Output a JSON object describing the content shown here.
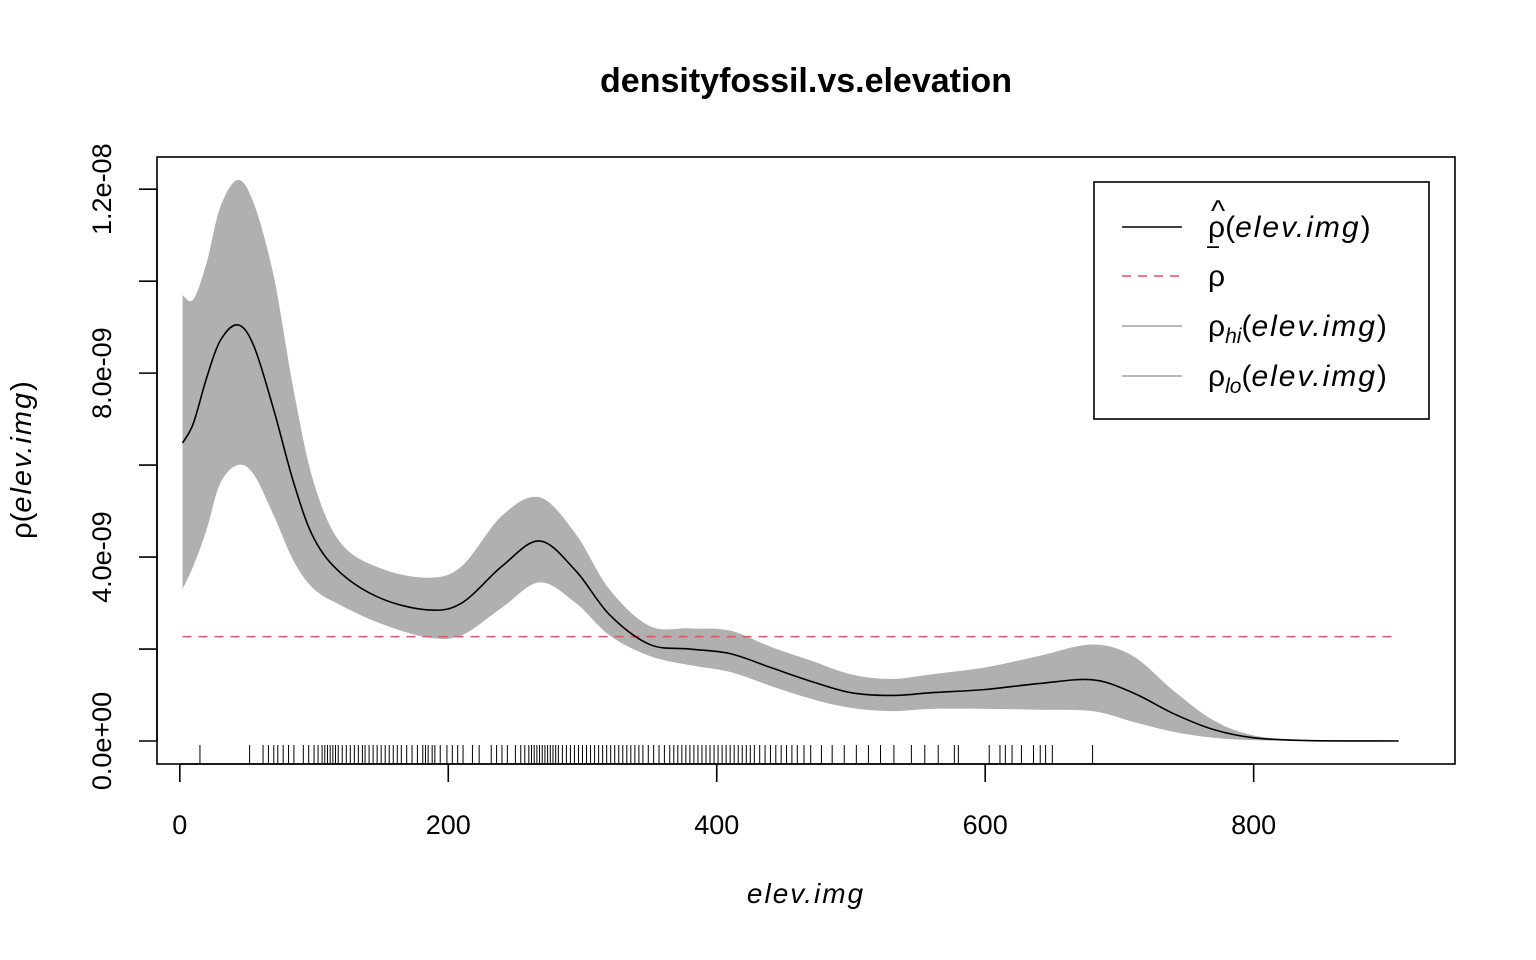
{
  "chart_data": {
    "type": "area",
    "title": "densityfossil.vs.elevation",
    "xlabel": "elev.img",
    "ylabel_symbol": "ρ",
    "ylabel_var": "elev.img",
    "xlim": [
      -17,
      950
    ],
    "ylim": [
      -5e-10,
      1.27e-08
    ],
    "x_ticks": [
      0,
      200,
      400,
      600,
      800
    ],
    "x_tick_labels": [
      "0",
      "200",
      "400",
      "600",
      "800"
    ],
    "y_ticks": [
      0,
      2e-09,
      4e-09,
      6e-09,
      8e-09,
      1e-08,
      1.2e-08
    ],
    "y_tick_labels": [
      "0.0e+00",
      "",
      "4.0e-09",
      "",
      "8.0e-09",
      "",
      "1.2e-08"
    ],
    "mean_rho": 2.27e-09,
    "x": [
      2,
      10,
      20,
      30,
      43,
      55,
      70,
      85,
      100,
      120,
      150,
      185,
      210,
      240,
      268,
      295,
      320,
      350,
      380,
      410,
      440,
      470,
      500,
      530,
      560,
      600,
      640,
      680,
      710,
      740,
      770,
      800,
      840,
      908
    ],
    "series": [
      {
        "name": "ρ̂(elev.img)",
        "values": [
          6.48e-09,
          6.9e-09,
          7.9e-09,
          8.7e-09,
          9.05e-09,
          8.6e-09,
          7.2e-09,
          5.6e-09,
          4.4e-09,
          3.65e-09,
          3.1e-09,
          2.85e-09,
          3e-09,
          3.8e-09,
          4.35e-09,
          3.7e-09,
          2.75e-09,
          2.1e-09,
          2e-09,
          1.9e-09,
          1.6e-09,
          1.3e-09,
          1.05e-09,
          9.9e-10,
          1.05e-09,
          1.12e-09,
          1.25e-09,
          1.33e-09,
          1.05e-09,
          6e-10,
          2.5e-10,
          7e-11,
          1e-11,
          0.0
        ]
      },
      {
        "name": "ρhi(elev.img)",
        "values": [
          9.7e-09,
          9.6e-09,
          1.04e-08,
          1.16e-08,
          1.22e-08,
          1.17e-08,
          1.01e-08,
          7.6e-09,
          5.6e-09,
          4.3e-09,
          3.75e-09,
          3.55e-09,
          3.8e-09,
          4.9e-09,
          5.3e-09,
          4.5e-09,
          3.3e-09,
          2.5e-09,
          2.45e-09,
          2.4e-09,
          2.05e-09,
          1.75e-09,
          1.45e-09,
          1.35e-09,
          1.45e-09,
          1.6e-09,
          1.85e-09,
          2.1e-09,
          1.85e-09,
          1.1e-09,
          4.5e-10,
          1.2e-10,
          2e-11,
          0.0
        ]
      },
      {
        "name": "ρlo(elev.img)",
        "values": [
          3.3e-09,
          3.8e-09,
          4.6e-09,
          5.6e-09,
          6e-09,
          5.8e-09,
          4.9e-09,
          3.9e-09,
          3.3e-09,
          2.95e-09,
          2.55e-09,
          2.25e-09,
          2.3e-09,
          2.9e-09,
          3.45e-09,
          3e-09,
          2.3e-09,
          1.85e-09,
          1.65e-09,
          1.5e-09,
          1.2e-09,
          9.2e-10,
          7.2e-10,
          6.5e-10,
          7e-10,
          7e-10,
          6.8e-10,
          6.5e-10,
          4.2e-10,
          2e-10,
          7e-11,
          2e-11,
          0.0,
          0.0
        ]
      }
    ],
    "rug": [
      15,
      52,
      62,
      66,
      70,
      73,
      77,
      81,
      85,
      92,
      96,
      100,
      103,
      106,
      108,
      110,
      112,
      114,
      116,
      118,
      121,
      124,
      127,
      130,
      133,
      136,
      138,
      141,
      144,
      147,
      150,
      153,
      156,
      159,
      162,
      165,
      169,
      173,
      177,
      181,
      183,
      185,
      188,
      190,
      194,
      199,
      203,
      207,
      211,
      218,
      223,
      232,
      236,
      240,
      244,
      250,
      254,
      257,
      260,
      262,
      264,
      266,
      268,
      270,
      272,
      274,
      276,
      278,
      280,
      282,
      285,
      288,
      291,
      294,
      297,
      300,
      303,
      306,
      309,
      312,
      315,
      318,
      321,
      324,
      327,
      330,
      333,
      336,
      339,
      342,
      345,
      349,
      353,
      357,
      361,
      365,
      368,
      371,
      374,
      377,
      380,
      383,
      386,
      389,
      392,
      395,
      398,
      401,
      404,
      407,
      410,
      413,
      416,
      419,
      422,
      425,
      428,
      432,
      436,
      440,
      444,
      448,
      452,
      456,
      460,
      465,
      470,
      478,
      486,
      495,
      504,
      513,
      522,
      532,
      545,
      555,
      565,
      577,
      580,
      603,
      611,
      615,
      620,
      627,
      636,
      641,
      645,
      650,
      680
    ],
    "legend": {
      "position": "top-right",
      "items": [
        {
          "symbol": "ρ",
          "hat": "^",
          "var": "elev.img",
          "color": "#000000",
          "dash": "solid"
        },
        {
          "symbol": "ρ",
          "bar": "‾",
          "var": "",
          "color": "#DF536B",
          "dash": "dashed"
        },
        {
          "symbol": "ρ",
          "sub": "hi",
          "var": "elev.img",
          "color": "#A0A0A0",
          "dash": "solid"
        },
        {
          "symbol": "ρ",
          "sub": "lo",
          "var": "elev.img",
          "color": "#A0A0A0",
          "dash": "solid"
        }
      ]
    },
    "colors": {
      "band": "#B0B0B0",
      "line": "#000000",
      "mean": "#DF536B",
      "axis": "#000000"
    }
  }
}
